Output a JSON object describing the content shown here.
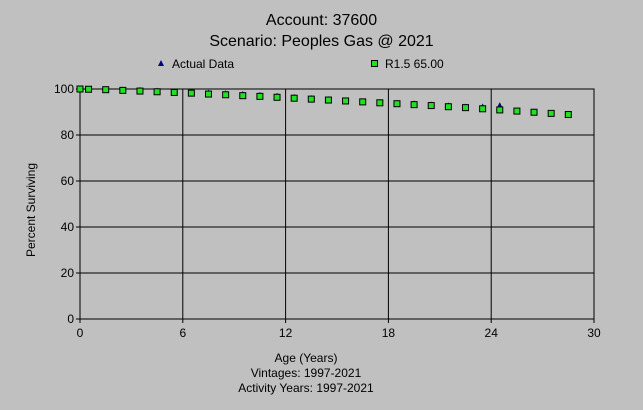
{
  "chart_data": {
    "type": "scatter",
    "title": "Account: 37600",
    "subtitle": "Scenario: Peoples Gas @ 2021",
    "xlabel": "Age (Years)",
    "ylabel": "Percent Surviving",
    "footnotes": [
      "Vintages: 1997-2021",
      "Activity Years: 1997-2021"
    ],
    "xlim": [
      0,
      30
    ],
    "ylim": [
      0,
      100
    ],
    "xticks": [
      0,
      6,
      12,
      18,
      24,
      30
    ],
    "yticks": [
      0,
      20,
      40,
      60,
      80,
      100
    ],
    "grid": true,
    "legend_position": "top",
    "series": [
      {
        "name": "Actual Data",
        "marker": "triangle",
        "color": "#000080",
        "x": [
          0,
          0.5,
          1.5,
          2.5,
          3.5,
          4.5,
          5.5,
          6.5,
          7.5,
          8.5,
          9.5,
          10.5,
          11.5,
          12.5,
          13.5,
          14.5,
          15.5,
          16.5,
          17.5,
          18.5,
          19.5,
          20.5,
          21.5,
          22.5,
          23.5,
          24.5
        ],
        "y": [
          100,
          100,
          99.9,
          99.8,
          99.6,
          99.3,
          99.0,
          98.8,
          98.5,
          98.2,
          97.9,
          97.5,
          97.1,
          96.6,
          96.1,
          95.6,
          95.1,
          94.5,
          94.0,
          93.9,
          93.8,
          93.3,
          92.9,
          92.4,
          92.4,
          93.0
        ]
      },
      {
        "name": "R1.5 65.00",
        "marker": "square",
        "color": "#22e022",
        "x": [
          0,
          0.5,
          1.5,
          2.5,
          3.5,
          4.5,
          5.5,
          6.5,
          7.5,
          8.5,
          9.5,
          10.5,
          11.5,
          12.5,
          13.5,
          14.5,
          15.5,
          16.5,
          17.5,
          18.5,
          19.5,
          20.5,
          21.5,
          22.5,
          23.5,
          24.5,
          25.5,
          26.5,
          27.5,
          28.5
        ],
        "y": [
          100,
          99.9,
          99.7,
          99.4,
          99.1,
          98.8,
          98.5,
          98.2,
          97.8,
          97.5,
          97.1,
          96.8,
          96.4,
          96.0,
          95.6,
          95.2,
          94.8,
          94.4,
          94.0,
          93.6,
          93.2,
          92.8,
          92.3,
          91.9,
          91.4,
          90.9,
          90.4,
          89.9,
          89.4,
          88.9
        ]
      }
    ]
  }
}
